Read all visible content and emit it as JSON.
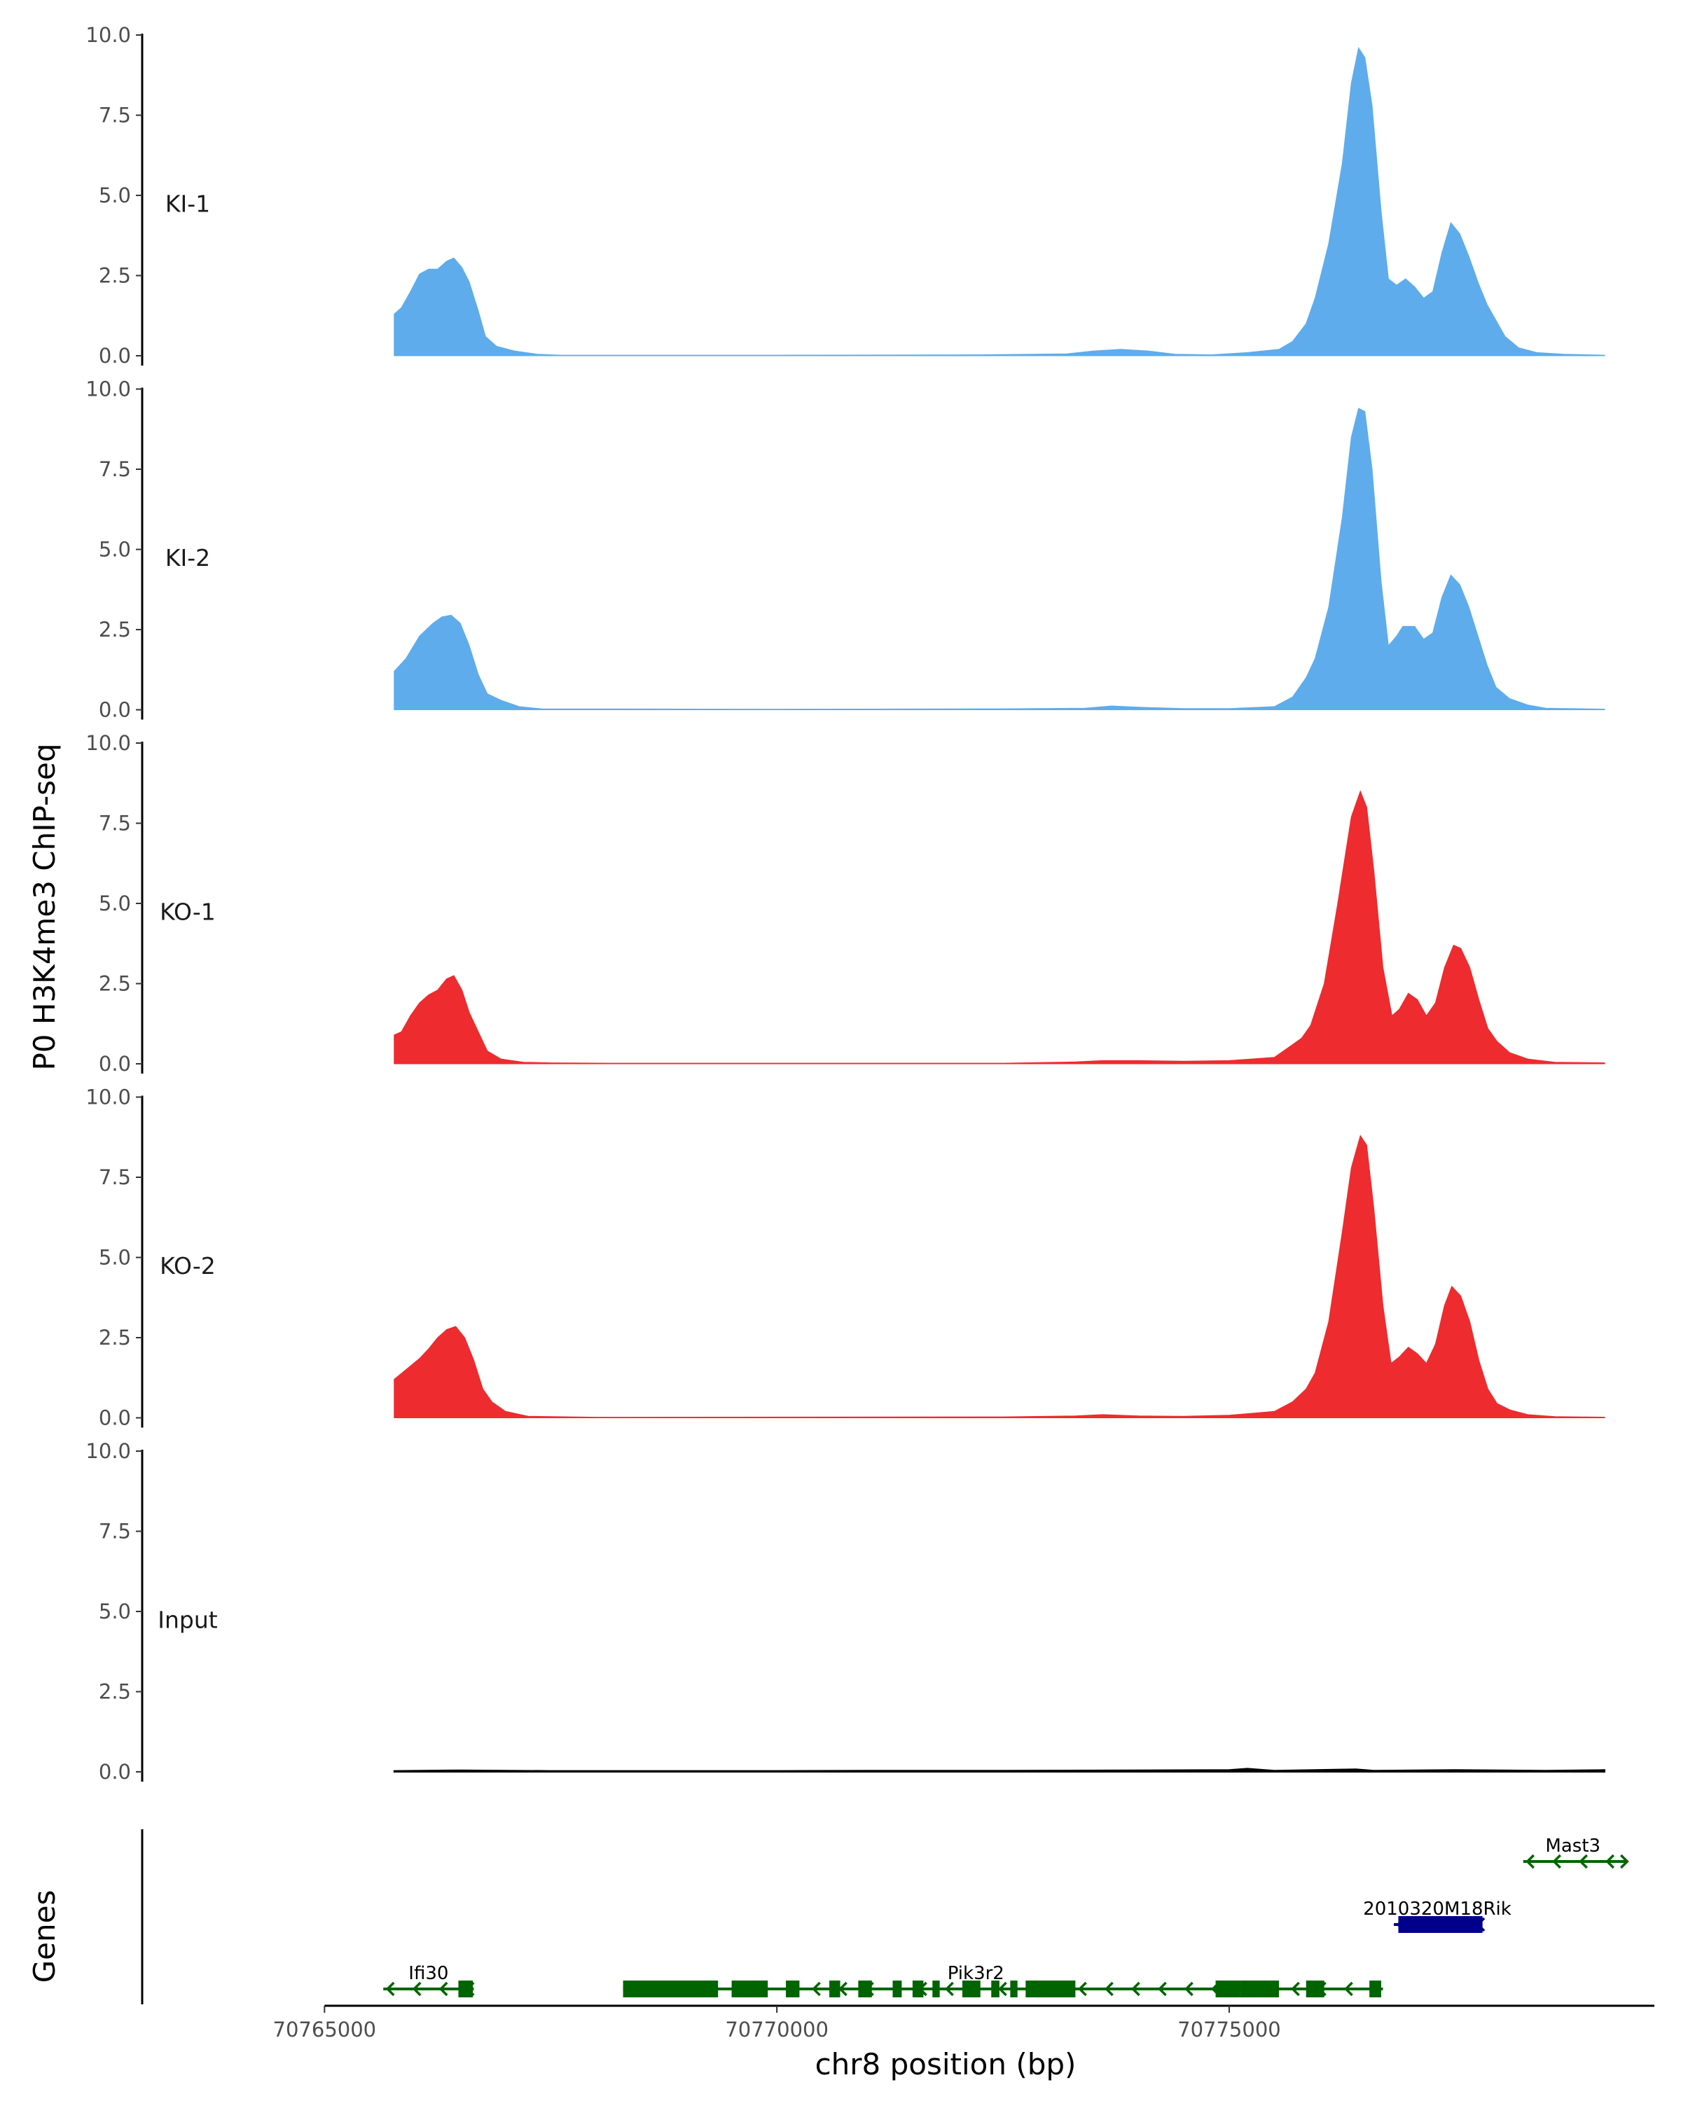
{
  "chart_data": {
    "type": "area",
    "chromosome": "chr8",
    "xlabel": "chr8 position (bp)",
    "ylabel": "P0 H3K4me3 ChIP-seq",
    "genes_axis_label": "Genes",
    "xlim": [
      70763000,
      70779700
    ],
    "ylim": [
      0,
      10
    ],
    "x_ticks": [
      70765000,
      70770000,
      70775000
    ],
    "x_tick_labels": [
      "70765000",
      "70770000",
      "70775000"
    ],
    "y_ticks": [
      0,
      2.5,
      5,
      7.5,
      10
    ],
    "y_tick_labels": [
      "0.0",
      "2.5",
      "5.0",
      "7.5",
      "10.0"
    ],
    "colors": {
      "KI": "#5eacec",
      "KO": "#ee2b2e",
      "Input": "#000000",
      "gene": "#006400",
      "gene_highlight": "#00008b"
    },
    "tracks": [
      {
        "name": "KI-1",
        "color": "#5eacec",
        "points": [
          [
            70765770,
            1.3
          ],
          [
            70765850,
            1.5
          ],
          [
            70765950,
            2.0
          ],
          [
            70766050,
            2.55
          ],
          [
            70766150,
            2.7
          ],
          [
            70766250,
            2.7
          ],
          [
            70766350,
            2.95
          ],
          [
            70766430,
            3.05
          ],
          [
            70766520,
            2.75
          ],
          [
            70766600,
            2.3
          ],
          [
            70766700,
            1.4
          ],
          [
            70766780,
            0.6
          ],
          [
            70766900,
            0.3
          ],
          [
            70767100,
            0.15
          ],
          [
            70767350,
            0.05
          ],
          [
            70767600,
            0.02
          ],
          [
            70770000,
            0.02
          ],
          [
            70772200,
            0.03
          ],
          [
            70773200,
            0.06
          ],
          [
            70773500,
            0.15
          ],
          [
            70773800,
            0.2
          ],
          [
            70774100,
            0.15
          ],
          [
            70774400,
            0.05
          ],
          [
            70774800,
            0.03
          ],
          [
            70775200,
            0.1
          ],
          [
            70775550,
            0.2
          ],
          [
            70775700,
            0.45
          ],
          [
            70775850,
            1.0
          ],
          [
            70775950,
            1.8
          ],
          [
            70776100,
            3.5
          ],
          [
            70776250,
            6.0
          ],
          [
            70776350,
            8.5
          ],
          [
            70776430,
            9.6
          ],
          [
            70776500,
            9.3
          ],
          [
            70776580,
            7.8
          ],
          [
            70776680,
            4.5
          ],
          [
            70776760,
            2.4
          ],
          [
            70776850,
            2.2
          ],
          [
            70776950,
            2.4
          ],
          [
            70777050,
            2.15
          ],
          [
            70777150,
            1.8
          ],
          [
            70777250,
            2.0
          ],
          [
            70777350,
            3.2
          ],
          [
            70777450,
            4.15
          ],
          [
            70777550,
            3.8
          ],
          [
            70777650,
            3.1
          ],
          [
            70777750,
            2.3
          ],
          [
            70777850,
            1.6
          ],
          [
            70777950,
            1.1
          ],
          [
            70778050,
            0.6
          ],
          [
            70778200,
            0.25
          ],
          [
            70778400,
            0.1
          ],
          [
            70778700,
            0.05
          ],
          [
            70779150,
            0.02
          ]
        ]
      },
      {
        "name": "KI-2",
        "color": "#5eacec",
        "points": [
          [
            70765770,
            1.2
          ],
          [
            70765900,
            1.6
          ],
          [
            70766050,
            2.3
          ],
          [
            70766200,
            2.7
          ],
          [
            70766300,
            2.9
          ],
          [
            70766400,
            2.95
          ],
          [
            70766500,
            2.7
          ],
          [
            70766600,
            2.0
          ],
          [
            70766700,
            1.1
          ],
          [
            70766800,
            0.5
          ],
          [
            70766950,
            0.3
          ],
          [
            70767150,
            0.1
          ],
          [
            70767400,
            0.03
          ],
          [
            70770000,
            0.02
          ],
          [
            70772500,
            0.03
          ],
          [
            70773400,
            0.05
          ],
          [
            70773700,
            0.12
          ],
          [
            70774000,
            0.08
          ],
          [
            70774500,
            0.04
          ],
          [
            70775000,
            0.04
          ],
          [
            70775500,
            0.1
          ],
          [
            70775700,
            0.4
          ],
          [
            70775850,
            1.0
          ],
          [
            70775950,
            1.6
          ],
          [
            70776100,
            3.2
          ],
          [
            70776250,
            6.0
          ],
          [
            70776350,
            8.5
          ],
          [
            70776430,
            9.4
          ],
          [
            70776500,
            9.3
          ],
          [
            70776580,
            7.5
          ],
          [
            70776680,
            4.0
          ],
          [
            70776760,
            2.0
          ],
          [
            70776850,
            2.3
          ],
          [
            70776920,
            2.6
          ],
          [
            70777050,
            2.6
          ],
          [
            70777150,
            2.2
          ],
          [
            70777250,
            2.4
          ],
          [
            70777350,
            3.5
          ],
          [
            70777450,
            4.2
          ],
          [
            70777550,
            3.9
          ],
          [
            70777650,
            3.2
          ],
          [
            70777750,
            2.3
          ],
          [
            70777850,
            1.4
          ],
          [
            70777950,
            0.7
          ],
          [
            70778100,
            0.35
          ],
          [
            70778300,
            0.15
          ],
          [
            70778500,
            0.05
          ],
          [
            70779150,
            0.02
          ]
        ]
      },
      {
        "name": "KO-1",
        "color": "#ee2b2e",
        "points": [
          [
            70765770,
            0.9
          ],
          [
            70765850,
            1.0
          ],
          [
            70765950,
            1.5
          ],
          [
            70766050,
            1.9
          ],
          [
            70766150,
            2.15
          ],
          [
            70766250,
            2.3
          ],
          [
            70766350,
            2.65
          ],
          [
            70766430,
            2.75
          ],
          [
            70766520,
            2.3
          ],
          [
            70766600,
            1.6
          ],
          [
            70766700,
            1.0
          ],
          [
            70766800,
            0.4
          ],
          [
            70766950,
            0.15
          ],
          [
            70767200,
            0.05
          ],
          [
            70767500,
            0.03
          ],
          [
            70768200,
            0.02
          ],
          [
            70772500,
            0.02
          ],
          [
            70773300,
            0.06
          ],
          [
            70773600,
            0.1
          ],
          [
            70774000,
            0.1
          ],
          [
            70774500,
            0.08
          ],
          [
            70775000,
            0.1
          ],
          [
            70775500,
            0.2
          ],
          [
            70775650,
            0.5
          ],
          [
            70775800,
            0.8
          ],
          [
            70775900,
            1.2
          ],
          [
            70776050,
            2.5
          ],
          [
            70776200,
            5.0
          ],
          [
            70776350,
            7.7
          ],
          [
            70776450,
            8.5
          ],
          [
            70776520,
            8.0
          ],
          [
            70776600,
            6.0
          ],
          [
            70776700,
            3.0
          ],
          [
            70776800,
            1.5
          ],
          [
            70776880,
            1.7
          ],
          [
            70776980,
            2.2
          ],
          [
            70777080,
            2.0
          ],
          [
            70777180,
            1.5
          ],
          [
            70777280,
            1.9
          ],
          [
            70777380,
            3.0
          ],
          [
            70777480,
            3.7
          ],
          [
            70777560,
            3.6
          ],
          [
            70777660,
            3.0
          ],
          [
            70777760,
            2.0
          ],
          [
            70777860,
            1.1
          ],
          [
            70777960,
            0.7
          ],
          [
            70778100,
            0.35
          ],
          [
            70778300,
            0.15
          ],
          [
            70778600,
            0.05
          ],
          [
            70779150,
            0.03
          ]
        ]
      },
      {
        "name": "KO-2",
        "color": "#ee2b2e",
        "points": [
          [
            70765770,
            1.2
          ],
          [
            70765900,
            1.5
          ],
          [
            70766050,
            1.85
          ],
          [
            70766150,
            2.15
          ],
          [
            70766250,
            2.5
          ],
          [
            70766350,
            2.75
          ],
          [
            70766450,
            2.85
          ],
          [
            70766550,
            2.5
          ],
          [
            70766650,
            1.8
          ],
          [
            70766750,
            0.9
          ],
          [
            70766850,
            0.5
          ],
          [
            70767000,
            0.2
          ],
          [
            70767250,
            0.05
          ],
          [
            70768000,
            0.02
          ],
          [
            70772500,
            0.03
          ],
          [
            70773300,
            0.06
          ],
          [
            70773600,
            0.1
          ],
          [
            70774000,
            0.06
          ],
          [
            70774500,
            0.05
          ],
          [
            70775000,
            0.08
          ],
          [
            70775500,
            0.2
          ],
          [
            70775700,
            0.5
          ],
          [
            70775850,
            0.9
          ],
          [
            70775950,
            1.4
          ],
          [
            70776100,
            3.0
          ],
          [
            70776250,
            5.8
          ],
          [
            70776350,
            7.8
          ],
          [
            70776450,
            8.8
          ],
          [
            70776520,
            8.5
          ],
          [
            70776600,
            6.5
          ],
          [
            70776700,
            3.5
          ],
          [
            70776790,
            1.7
          ],
          [
            70776880,
            1.9
          ],
          [
            70776980,
            2.2
          ],
          [
            70777080,
            2.0
          ],
          [
            70777180,
            1.7
          ],
          [
            70777280,
            2.3
          ],
          [
            70777380,
            3.5
          ],
          [
            70777460,
            4.1
          ],
          [
            70777560,
            3.8
          ],
          [
            70777660,
            3.0
          ],
          [
            70777760,
            1.8
          ],
          [
            70777860,
            0.9
          ],
          [
            70777960,
            0.45
          ],
          [
            70778100,
            0.25
          ],
          [
            70778300,
            0.1
          ],
          [
            70778600,
            0.04
          ],
          [
            70779150,
            0.02
          ]
        ]
      },
      {
        "name": "Input",
        "color": "#000000",
        "points": [
          [
            70765770,
            0.03
          ],
          [
            70766500,
            0.05
          ],
          [
            70767500,
            0.03
          ],
          [
            70770000,
            0.03
          ],
          [
            70771000,
            0.04
          ],
          [
            70772500,
            0.04
          ],
          [
            70775000,
            0.06
          ],
          [
            70775200,
            0.1
          ],
          [
            70775500,
            0.04
          ],
          [
            70776400,
            0.08
          ],
          [
            70776600,
            0.04
          ],
          [
            70777500,
            0.06
          ],
          [
            70778500,
            0.04
          ],
          [
            70779150,
            0.06
          ]
        ]
      }
    ],
    "genes": [
      {
        "name": "Ifi30",
        "color": "#006400",
        "row": 0,
        "start": 70765650,
        "end": 70766650,
        "label_x": 70766150,
        "exons": [
          [
            70766480,
            70766640
          ]
        ]
      },
      {
        "name": "Pik3r2",
        "color": "#006400",
        "row": 0,
        "start": 70768300,
        "end": 70776700,
        "label_x": 70772200,
        "exons": [
          [
            70768300,
            70769000
          ],
          [
            70769000,
            70769350
          ],
          [
            70769500,
            70769900
          ],
          [
            70770100,
            70770250
          ],
          [
            70770580,
            70770700
          ],
          [
            70770900,
            70771050
          ],
          [
            70771280,
            70771380
          ],
          [
            70771500,
            70771620
          ],
          [
            70771720,
            70771800
          ],
          [
            70772050,
            70772250
          ],
          [
            70772370,
            70772460
          ],
          [
            70772580,
            70772660
          ],
          [
            70772750,
            70773300
          ],
          [
            70774850,
            70775120
          ],
          [
            70775120,
            70775550
          ],
          [
            70775850,
            70776050
          ],
          [
            70776550,
            70776680
          ]
        ]
      },
      {
        "name": "2010320M18Rik",
        "color": "#00008b",
        "row": 1,
        "start": 70776820,
        "end": 70777800,
        "label_x": 70777300,
        "exons": [
          [
            70776870,
            70777800
          ]
        ]
      },
      {
        "name": "Mast3",
        "color": "#006400",
        "row": 2,
        "start": 70778250,
        "end": 70779400,
        "label_x": 70778800,
        "exons": []
      }
    ]
  }
}
